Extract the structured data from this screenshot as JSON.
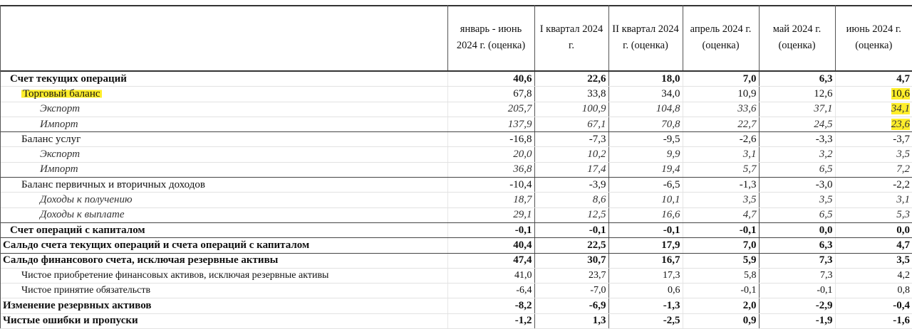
{
  "columns": [
    "январь - июнь 2024 г. (оценка)",
    "I квартал 2024 г.",
    "II квартал 2024 г. (оценка)",
    "апрель 2024 г. (оценка)",
    "май 2024 г. (оценка)",
    "июнь 2024 г. (оценка)"
  ],
  "highlight_color": "#ffee2a",
  "rows": [
    {
      "label": "Счет текущих операций",
      "style": "bold",
      "indent": 0,
      "values": [
        "40,6",
        "22,6",
        "18,0",
        "7,0",
        "6,3",
        "4,7"
      ]
    },
    {
      "label": "Торговый баланс",
      "style": "normal",
      "indent": 1,
      "highlight_label": true,
      "highlight_last": true,
      "values": [
        "67,8",
        "33,8",
        "34,0",
        "10,9",
        "12,6",
        "10,6"
      ]
    },
    {
      "label": "Экспорт",
      "style": "italic",
      "indent": 2,
      "highlight_last": true,
      "values": [
        "205,7",
        "100,9",
        "104,8",
        "33,6",
        "37,1",
        "34,1"
      ]
    },
    {
      "label": "Импорт",
      "style": "italic",
      "indent": 2,
      "highlight_last": true,
      "sep": true,
      "values": [
        "137,9",
        "67,1",
        "70,8",
        "22,7",
        "24,5",
        "23,6"
      ]
    },
    {
      "label": "Баланс услуг",
      "style": "normal",
      "indent": 1,
      "values": [
        "-16,8",
        "-7,3",
        "-9,5",
        "-2,6",
        "-3,3",
        "-3,7"
      ]
    },
    {
      "label": "Экспорт",
      "style": "italic",
      "indent": 2,
      "values": [
        "20,0",
        "10,2",
        "9,9",
        "3,1",
        "3,2",
        "3,5"
      ]
    },
    {
      "label": "Импорт",
      "style": "italic",
      "indent": 2,
      "sep": true,
      "values": [
        "36,8",
        "17,4",
        "19,4",
        "5,7",
        "6,5",
        "7,2"
      ]
    },
    {
      "label": "Баланс первичных и вторичных доходов",
      "style": "normal",
      "indent": 1,
      "values": [
        "-10,4",
        "-3,9",
        "-6,5",
        "-1,3",
        "-3,0",
        "-2,2"
      ]
    },
    {
      "label": "Доходы к получению",
      "style": "italic",
      "indent": 2,
      "values": [
        "18,7",
        "8,6",
        "10,1",
        "3,5",
        "3,5",
        "3,1"
      ]
    },
    {
      "label": "Доходы к выплате",
      "style": "italic",
      "indent": 2,
      "sep": true,
      "values": [
        "29,1",
        "12,5",
        "16,6",
        "4,7",
        "6,5",
        "5,3"
      ]
    },
    {
      "label": "Счет операций с капиталом",
      "style": "bold",
      "indent": 0,
      "sep": true,
      "values": [
        "-0,1",
        "-0,1",
        "-0,1",
        "-0,1",
        "0,0",
        "0,0"
      ]
    },
    {
      "label": "Сальдо счета текущих операций и счета операций с капиталом",
      "style": "bold",
      "indent": -1,
      "sep": true,
      "values": [
        "40,4",
        "22,5",
        "17,9",
        "7,0",
        "6,3",
        "4,7"
      ]
    },
    {
      "label": "Сальдо финансового счета, исключая резервные активы",
      "style": "bold",
      "indent": -1,
      "values": [
        "47,4",
        "30,7",
        "16,7",
        "5,9",
        "7,3",
        "3,5"
      ]
    },
    {
      "label": "Чистое приобретение финансовых активов, исключая резервные активы",
      "style": "small",
      "indent": 1,
      "values": [
        "41,0",
        "23,7",
        "17,3",
        "5,8",
        "7,3",
        "4,2"
      ]
    },
    {
      "label": "Чистое принятие обязательств",
      "style": "small",
      "indent": 1,
      "values": [
        "-6,4",
        "-7,0",
        "0,6",
        "-0,1",
        "-0,1",
        "0,8"
      ]
    },
    {
      "label": "Изменение резервных активов",
      "style": "bold",
      "indent": -1,
      "values": [
        "-8,2",
        "-6,9",
        "-1,3",
        "2,0",
        "-2,9",
        "-0,4"
      ]
    },
    {
      "label": "Чистые ошибки и пропуски",
      "style": "bold",
      "indent": -1,
      "values": [
        "-1,2",
        "1,3",
        "-2,5",
        "0,9",
        "-1,9",
        "-1,6"
      ]
    }
  ]
}
